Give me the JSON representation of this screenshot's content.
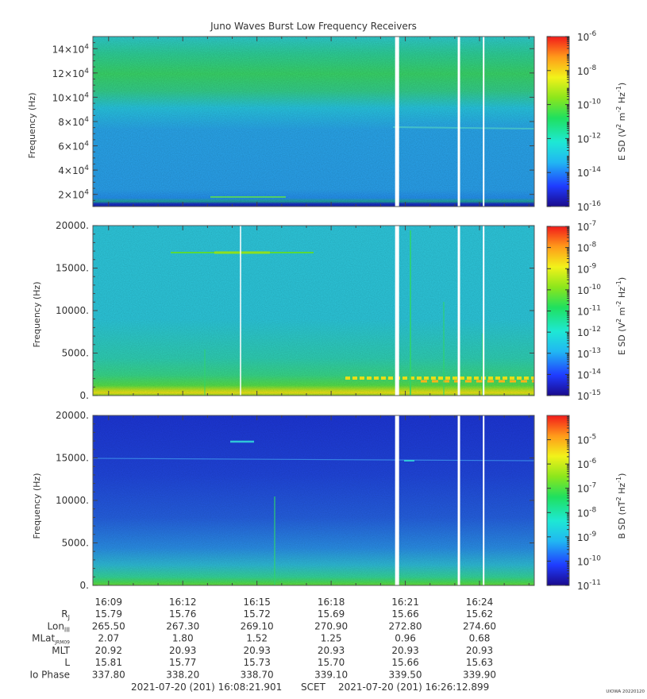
{
  "title": "Juno Waves Burst Low Frequency Receivers",
  "chart_data": [
    {
      "type": "heatmap",
      "ylabel": "Frequency (Hz)",
      "ylim": [
        10000,
        150000
      ],
      "yticks": [
        {
          "value": 20000,
          "base": "2×10",
          "exp": "4"
        },
        {
          "value": 40000,
          "base": "4×10",
          "exp": "4"
        },
        {
          "value": 60000,
          "base": "6×10",
          "exp": "4"
        },
        {
          "value": 80000,
          "base": "8×10",
          "exp": "4"
        },
        {
          "value": 100000,
          "base": "10×10",
          "exp": "4"
        },
        {
          "value": 120000,
          "base": "12×10",
          "exp": "4"
        },
        {
          "value": 140000,
          "base": "14×10",
          "exp": "4"
        }
      ],
      "colorbar": {
        "label_parts": [
          "E SD (V",
          "2",
          " m",
          "-2",
          " Hz",
          "-1",
          ")"
        ],
        "log": true,
        "range_exp": [
          -16,
          -6
        ],
        "ticks": [
          "-6",
          "-8",
          "-10",
          "-12",
          "-14",
          "-16"
        ]
      }
    },
    {
      "type": "heatmap",
      "ylabel": "Frequency (Hz)",
      "ylim": [
        0,
        20000
      ],
      "yticks": [
        "0.",
        "5000.",
        "10000.",
        "15000.",
        "20000."
      ],
      "colorbar": {
        "label_parts": [
          "E SD (V",
          "2",
          " m",
          "-2",
          " Hz",
          "-1",
          ")"
        ],
        "log": true,
        "range_exp": [
          -15,
          -7
        ],
        "ticks": [
          "-7",
          "-8",
          "-9",
          "-10",
          "-11",
          "-12",
          "-13",
          "-14",
          "-15"
        ]
      }
    },
    {
      "type": "heatmap",
      "ylabel": "Frequency (Hz)",
      "ylim": [
        0,
        20000
      ],
      "yticks": [
        "0.",
        "5000.",
        "10000.",
        "15000.",
        "20000."
      ],
      "colorbar": {
        "label_parts": [
          "B SD (nT",
          "2",
          " Hz",
          "-1",
          ")"
        ],
        "log": true,
        "range_exp": [
          -11,
          -4
        ],
        "ticks": [
          "-5",
          "-6",
          "-7",
          "-8",
          "-9",
          "-10",
          "-11"
        ]
      }
    }
  ],
  "time_axis": {
    "ticks": [
      "16:09",
      "16:12",
      "16:15",
      "16:18",
      "16:21",
      "16:24"
    ],
    "data_gaps": [
      "16:20:40",
      "16:23:10",
      "16:24:10"
    ]
  },
  "ephemeris": [
    {
      "label": "R",
      "sub": "J",
      "values": [
        "15.79",
        "15.76",
        "15.72",
        "15.69",
        "15.66",
        "15.62"
      ]
    },
    {
      "label": "Lon",
      "sub": "III",
      "values": [
        "265.50",
        "267.30",
        "269.10",
        "270.90",
        "272.80",
        "274.60"
      ]
    },
    {
      "label": "MLat",
      "sub": "JRM09",
      "values": [
        "2.07",
        "1.80",
        "1.52",
        "1.25",
        "0.96",
        "0.68"
      ]
    },
    {
      "label": "MLT",
      "sub": "",
      "values": [
        "20.92",
        "20.93",
        "20.93",
        "20.93",
        "20.93",
        "20.93"
      ]
    },
    {
      "label": "L",
      "sub": "",
      "values": [
        "15.81",
        "15.77",
        "15.73",
        "15.70",
        "15.66",
        "15.63"
      ]
    },
    {
      "label": "Io Phase",
      "sub": "",
      "values": [
        "337.80",
        "338.20",
        "338.70",
        "339.10",
        "339.50",
        "339.90"
      ]
    }
  ],
  "footer": {
    "start": "2021-07-20 (201) 16:08:21.901",
    "scet": "SCET",
    "end": "2021-07-20 (201) 16:26:12.899",
    "stamp": "UIOWA 20220120"
  },
  "tick_base": "10"
}
